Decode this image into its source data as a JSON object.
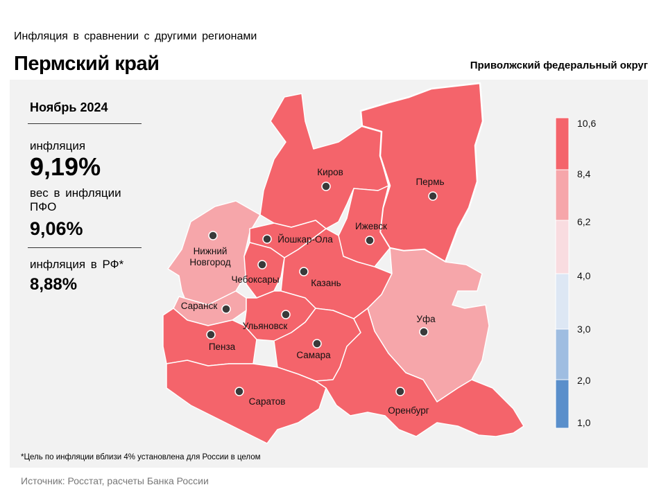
{
  "header": {
    "subtitle": "Инфляция в сравнении с другими регионами",
    "title": "Пермский край",
    "district": "Приволжский федеральный округ"
  },
  "stats": {
    "month": "Ноябрь 2024",
    "inflation_label": "инфляция",
    "inflation_value": "9,19%",
    "weight_label": "вес в инфляции ПФО",
    "weight_value": "9,06%",
    "rf_label": "инфляция в РФ*",
    "rf_value": "8,88%"
  },
  "footnote": "*Цель по инфляции вблизи 4% установлена для России в целом",
  "source": "Источник: Росстат, расчеты Банка России",
  "legend": {
    "ticks": [
      "10,6",
      "8,4",
      "6,2",
      "4,0",
      "3,0",
      "2,0",
      "1,0"
    ],
    "colors": [
      "#f4646b",
      "#f6a6aa",
      "#f9dce0",
      "#dde7f4",
      "#9fbde1",
      "#5a8fcb"
    ]
  },
  "colors": {
    "high": "#f4646b",
    "medium": "#f6a6aa",
    "highlight_outline": "#ffffff"
  },
  "cities": [
    {
      "name": "Киров",
      "band": "8,4–10,6"
    },
    {
      "name": "Пермь",
      "band": "8,4–10,6",
      "highlighted": true
    },
    {
      "name": "Ижевск",
      "band": "8,4–10,6"
    },
    {
      "name": "Нижний Новгород",
      "line1": "Нижний",
      "line2": "Новгород",
      "band": "6,2–8,4"
    },
    {
      "name": "Йошкар-Ола",
      "band": "8,4–10,6"
    },
    {
      "name": "Чебоксары",
      "band": "8,4–10,6"
    },
    {
      "name": "Казань",
      "band": "8,4–10,6"
    },
    {
      "name": "Саранск",
      "band": "6,2–8,4"
    },
    {
      "name": "Ульяновск",
      "band": "8,4–10,6"
    },
    {
      "name": "Уфа",
      "band": "6,2–8,4"
    },
    {
      "name": "Пенза",
      "band": "8,4–10,6"
    },
    {
      "name": "Самара",
      "band": "8,4–10,6"
    },
    {
      "name": "Саратов",
      "band": "8,4–10,6"
    },
    {
      "name": "Оренбург",
      "band": "8,4–10,6"
    }
  ]
}
